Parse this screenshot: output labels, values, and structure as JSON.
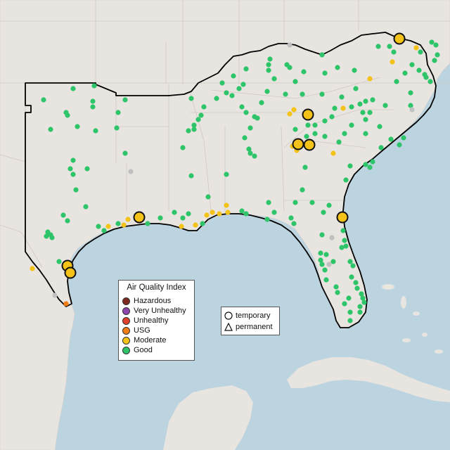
{
  "legend": {
    "title": "Air Quality Index",
    "categories": [
      {
        "label": "Hazardous",
        "color": "#7e2a1e"
      },
      {
        "label": "Very Unhealthy",
        "color": "#8e44ad"
      },
      {
        "label": "Unhealthy",
        "color": "#e0412c"
      },
      {
        "label": "USG",
        "color": "#f07d14"
      },
      {
        "label": "Moderate",
        "color": "#f3c31a"
      },
      {
        "label": "Good",
        "color": "#2ec46a"
      }
    ]
  },
  "site_types": {
    "temporary": "temporary",
    "permanent": "permanent"
  },
  "colors": {
    "water": "#bcd3e0",
    "land": "#e8e4df",
    "good": "#2ec46a",
    "moderate": "#f3c31a",
    "usg": "#f07d14",
    "no_data": "#c0c0c0",
    "boundary": "#000000"
  }
}
